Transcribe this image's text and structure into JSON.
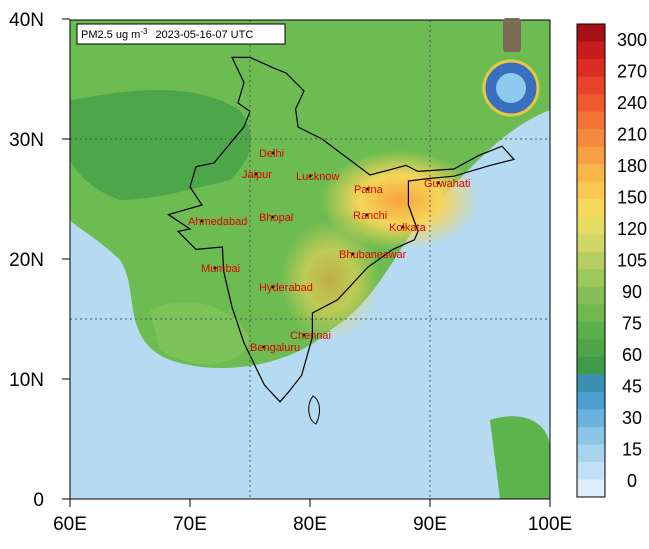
{
  "header": {
    "title": "PM2.5 ug m",
    "title_superscript": "-3",
    "timestamp": "2023-05-16-07 UTC"
  },
  "map": {
    "lat_ticks": [
      {
        "value": 40,
        "label": "40N"
      },
      {
        "value": 30,
        "label": "30N"
      },
      {
        "value": 20,
        "label": "20N"
      },
      {
        "value": 10,
        "label": "10N"
      },
      {
        "value": 0,
        "label": "0"
      }
    ],
    "lon_ticks": [
      {
        "value": 60,
        "label": "60E"
      },
      {
        "value": 70,
        "label": "70E"
      },
      {
        "value": 80,
        "label": "80E"
      },
      {
        "value": 90,
        "label": "90E"
      },
      {
        "value": 100,
        "label": "100E"
      }
    ],
    "cities": [
      "Delhi",
      "Jaipur",
      "Lucknow",
      "Patna",
      "Guwahati",
      "Ahmedabad",
      "Bhopal",
      "Ranchi",
      "Kolkata",
      "Mumbai",
      "Bhubaneswar",
      "Hyderabad",
      "Chennai",
      "Bengaluru"
    ]
  },
  "colorbar": {
    "labels": [
      300,
      270,
      240,
      210,
      180,
      150,
      120,
      105,
      90,
      75,
      60,
      45,
      30,
      15,
      0
    ]
  }
}
